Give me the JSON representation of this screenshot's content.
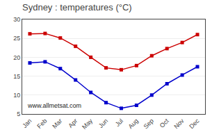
{
  "chart_data": {
    "type": "line",
    "title": "Sydney : temperatures (°C)",
    "categories": [
      "Jan",
      "Feb",
      "Mar",
      "Apr",
      "May",
      "Jun",
      "Jul",
      "Aug",
      "Sep",
      "Oct",
      "Nov",
      "Dec"
    ],
    "series": [
      {
        "color": "#cc0000",
        "marker": "square",
        "line_style": "solid",
        "values": [
          26.2,
          26.3,
          25.1,
          22.9,
          20.0,
          17.2,
          16.7,
          17.8,
          20.4,
          22.3,
          23.9,
          26.0
        ]
      },
      {
        "color": "#0000cc",
        "marker": "square",
        "line_style": "solid",
        "values": [
          18.5,
          18.8,
          17.0,
          14.0,
          10.7,
          8.0,
          6.5,
          7.3,
          10.0,
          13.0,
          15.3,
          17.5
        ]
      }
    ],
    "ylim": [
      5,
      30
    ],
    "yticks": [
      5,
      10,
      15,
      20,
      25,
      30
    ],
    "grid": true,
    "annotations": [
      "www.allmetsat.com"
    ]
  }
}
